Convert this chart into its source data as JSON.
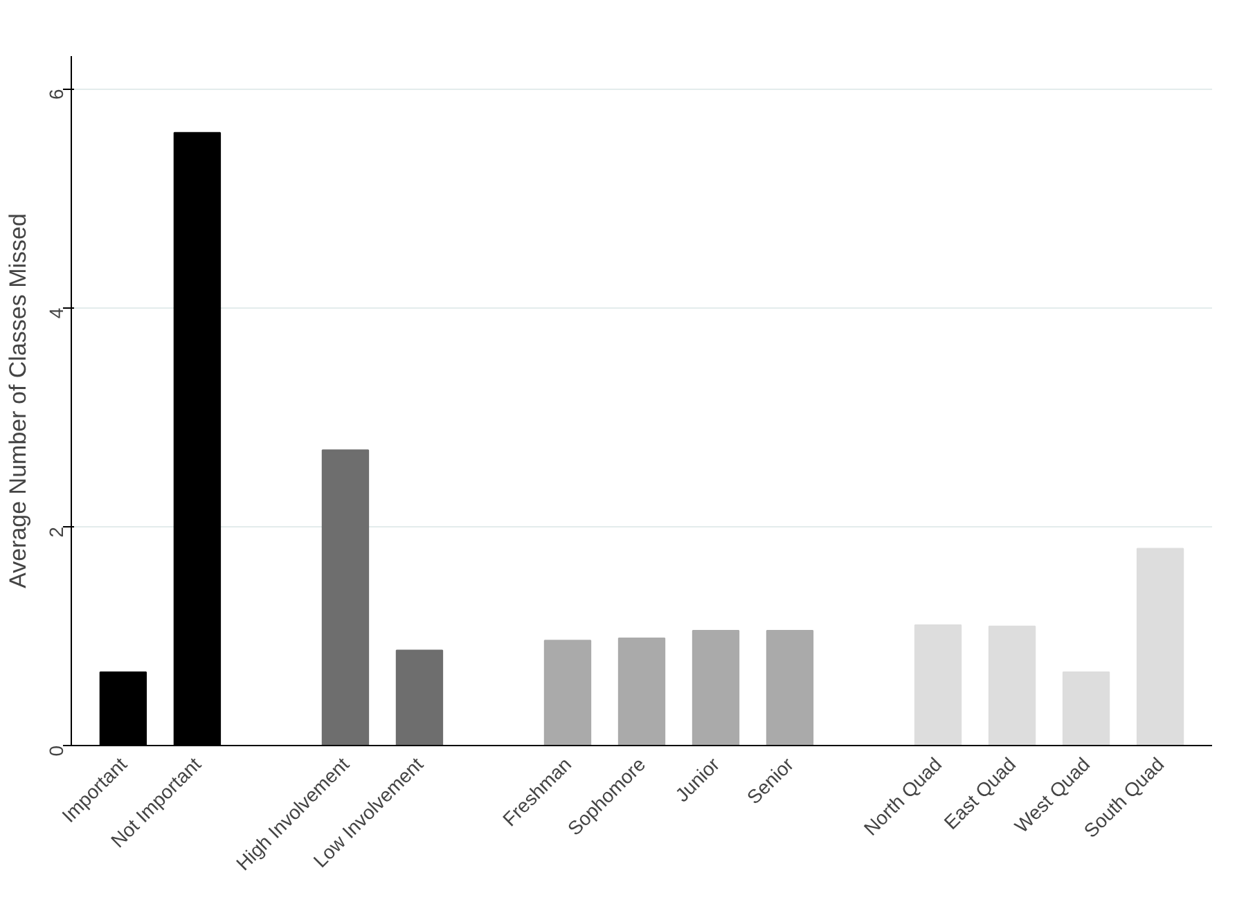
{
  "chart_data": {
    "type": "bar",
    "ylabel": "Average Number of Classes Missed",
    "categories": [
      "Important",
      "Not Important",
      null,
      "High Involvement",
      "Low Involvement",
      null,
      "Freshman",
      "Sophomore",
      "Junior",
      "Senior",
      null,
      "North Quad",
      "East Quad",
      "West Quad",
      "South Quad"
    ],
    "values": [
      0.67,
      5.6,
      null,
      2.7,
      0.87,
      null,
      0.96,
      0.98,
      1.05,
      1.05,
      null,
      1.1,
      1.09,
      0.67,
      1.8
    ],
    "colors": [
      "#000000",
      "#000000",
      null,
      "#6e6e6e",
      "#6e6e6e",
      null,
      "#aaaaaa",
      "#aaaaaa",
      "#aaaaaa",
      "#aaaaaa",
      null,
      "#dddddd",
      "#dddddd",
      "#dddddd",
      "#dddddd"
    ],
    "ylim": [
      0,
      6.3
    ],
    "yticks": [
      0,
      2,
      4,
      6
    ],
    "grid": "y"
  }
}
